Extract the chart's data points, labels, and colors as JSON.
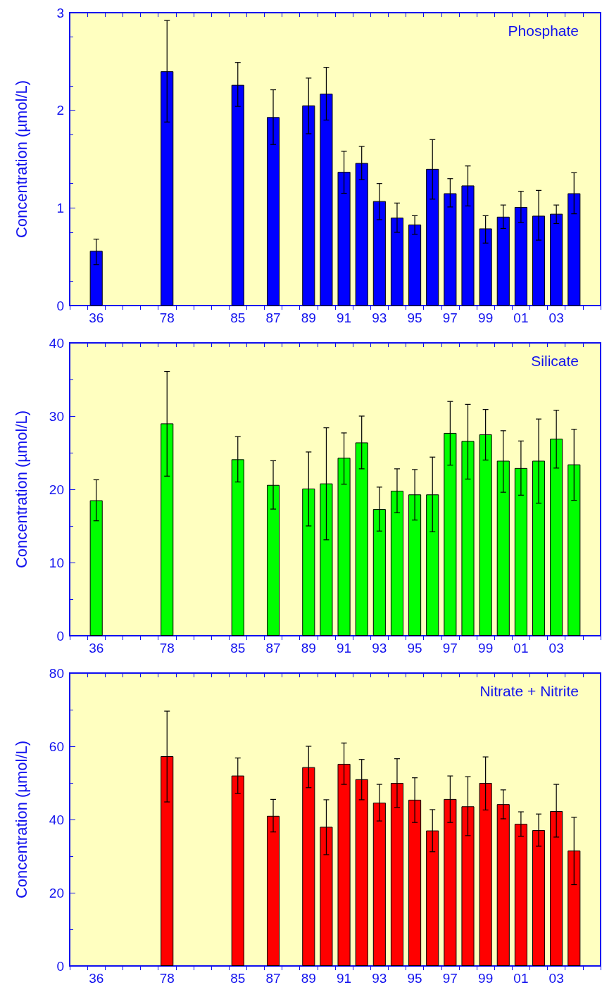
{
  "chart_data": [
    {
      "type": "bar",
      "title": "Phosphate",
      "ylabel": "Concentration (µmol/L)",
      "color": "#0000ff",
      "categories": [
        null,
        "36",
        null,
        null,
        null,
        "78",
        null,
        null,
        null,
        "85",
        null,
        "87",
        null,
        "89",
        null,
        "91",
        null,
        "93",
        null,
        "95",
        null,
        "97",
        null,
        "99",
        null,
        "01",
        null,
        "03",
        null,
        null
      ],
      "values": [
        null,
        0.56,
        null,
        null,
        null,
        2.4,
        null,
        null,
        null,
        2.26,
        null,
        1.93,
        null,
        2.05,
        2.17,
        1.37,
        1.46,
        1.07,
        0.9,
        0.83,
        1.4,
        1.15,
        1.23,
        0.79,
        0.91,
        1.01,
        0.92,
        0.94,
        1.15,
        null
      ],
      "errors": [
        null,
        [
          0.42,
          0.68
        ],
        null,
        null,
        null,
        [
          1.88,
          2.92
        ],
        null,
        null,
        null,
        [
          2.04,
          2.49
        ],
        null,
        [
          1.65,
          2.21
        ],
        null,
        [
          1.76,
          2.33
        ],
        [
          1.9,
          2.44
        ],
        [
          1.15,
          1.58
        ],
        [
          1.29,
          1.63
        ],
        [
          0.88,
          1.25
        ],
        [
          0.75,
          1.05
        ],
        [
          0.73,
          0.92
        ],
        [
          1.09,
          1.7
        ],
        [
          1.01,
          1.3
        ],
        [
          1.02,
          1.43
        ],
        [
          0.64,
          0.92
        ],
        [
          0.79,
          1.03
        ],
        [
          0.85,
          1.17
        ],
        [
          0.67,
          1.18
        ],
        [
          0.84,
          1.03
        ],
        [
          0.94,
          1.36
        ],
        null
      ],
      "ylim": [
        0,
        3
      ],
      "yticks": [
        0,
        1,
        2,
        3
      ]
    },
    {
      "type": "bar",
      "title": "Silicate",
      "ylabel": "Concentration (µmol/L)",
      "color": "#00ff00",
      "categories": [
        null,
        "36",
        null,
        null,
        null,
        "78",
        null,
        null,
        null,
        "85",
        null,
        "87",
        null,
        "89",
        null,
        "91",
        null,
        "93",
        null,
        "95",
        null,
        "97",
        null,
        "99",
        null,
        "01",
        null,
        "03",
        null,
        null
      ],
      "values": [
        null,
        18.5,
        null,
        null,
        null,
        29.0,
        null,
        null,
        null,
        24.1,
        null,
        20.6,
        null,
        20.1,
        20.8,
        24.3,
        26.4,
        17.3,
        19.8,
        19.3,
        19.3,
        27.7,
        26.6,
        27.5,
        23.9,
        22.9,
        23.9,
        26.9,
        23.4,
        null
      ],
      "errors": [
        null,
        [
          15.7,
          21.3
        ],
        null,
        null,
        null,
        [
          21.8,
          36.1
        ],
        null,
        null,
        null,
        [
          21.0,
          27.2
        ],
        null,
        [
          17.3,
          23.9
        ],
        null,
        [
          15.0,
          25.1
        ],
        [
          13.1,
          28.4
        ],
        [
          20.7,
          27.7
        ],
        [
          22.8,
          30.0
        ],
        [
          14.3,
          20.3
        ],
        [
          16.8,
          22.8
        ],
        [
          15.8,
          22.7
        ],
        [
          14.2,
          24.4
        ],
        [
          23.3,
          32.0
        ],
        [
          21.4,
          31.6
        ],
        [
          24.0,
          30.9
        ],
        [
          19.6,
          28.0
        ],
        [
          19.2,
          26.6
        ],
        [
          18.1,
          29.6
        ],
        [
          22.9,
          30.8
        ],
        [
          18.5,
          28.2
        ],
        null
      ],
      "ylim": [
        0,
        40
      ],
      "yticks": [
        0,
        10,
        20,
        30,
        40
      ]
    },
    {
      "type": "bar",
      "title": "Nitrate + Nitrite",
      "ylabel": "Concentration (µmol/L)",
      "color": "#ff0000",
      "categories": [
        null,
        "36",
        null,
        null,
        null,
        "78",
        null,
        null,
        null,
        "85",
        null,
        "87",
        null,
        "89",
        null,
        "91",
        null,
        "93",
        null,
        "95",
        null,
        "97",
        null,
        "99",
        null,
        "01",
        null,
        "03",
        null,
        null
      ],
      "values": [
        null,
        null,
        null,
        null,
        null,
        57.3,
        null,
        null,
        null,
        52.0,
        null,
        41.0,
        null,
        54.3,
        38.0,
        55.2,
        51.0,
        44.6,
        50.0,
        45.4,
        37.0,
        45.6,
        43.6,
        50.0,
        44.2,
        38.8,
        37.1,
        42.3,
        31.5,
        null
      ],
      "errors": [
        null,
        null,
        null,
        null,
        null,
        [
          44.8,
          69.6
        ],
        null,
        null,
        null,
        [
          47.1,
          56.8
        ],
        null,
        [
          36.6,
          45.5
        ],
        null,
        [
          48.7,
          60.0
        ],
        [
          30.4,
          45.4
        ],
        [
          49.6,
          60.9
        ],
        [
          45.4,
          56.4
        ],
        [
          39.6,
          49.6
        ],
        [
          43.3,
          56.6
        ],
        [
          39.2,
          51.4
        ],
        [
          31.2,
          42.7
        ],
        [
          39.2,
          51.9
        ],
        [
          35.6,
          51.7
        ],
        [
          42.6,
          57.1
        ],
        [
          40.2,
          48.1
        ],
        [
          35.4,
          42.1
        ],
        [
          32.7,
          41.5
        ],
        [
          35.2,
          49.6
        ],
        [
          22.2,
          40.6
        ],
        null
      ],
      "ylim": [
        0,
        80
      ],
      "yticks": [
        0,
        20,
        40,
        60,
        80
      ]
    }
  ]
}
